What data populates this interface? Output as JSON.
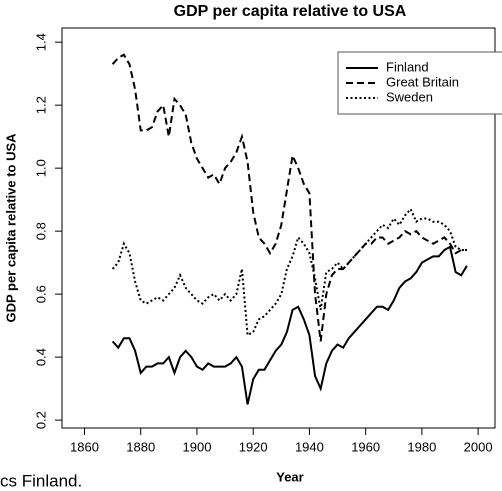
{
  "chart_data": {
    "type": "line",
    "title": "GDP per capita relative to USA",
    "x_label": "Year",
    "y_label": "GDP per capita relative to USA",
    "caption": "cs Finland.",
    "x": [
      1870,
      1872,
      1874,
      1876,
      1878,
      1880,
      1882,
      1884,
      1886,
      1888,
      1890,
      1892,
      1894,
      1896,
      1898,
      1900,
      1902,
      1904,
      1906,
      1908,
      1910,
      1912,
      1914,
      1916,
      1918,
      1920,
      1922,
      1924,
      1926,
      1928,
      1930,
      1932,
      1934,
      1936,
      1938,
      1940,
      1942,
      1944,
      1946,
      1948,
      1950,
      1952,
      1954,
      1956,
      1958,
      1960,
      1962,
      1964,
      1966,
      1968,
      1970,
      1972,
      1974,
      1976,
      1978,
      1980,
      1982,
      1984,
      1986,
      1988,
      1990,
      1992,
      1994,
      1996
    ],
    "series": [
      {
        "name": "Finland",
        "color": "#000000",
        "linestyle": "solid",
        "values": [
          0.45,
          0.43,
          0.46,
          0.46,
          0.42,
          0.35,
          0.37,
          0.37,
          0.38,
          0.38,
          0.4,
          0.35,
          0.4,
          0.42,
          0.4,
          0.37,
          0.36,
          0.38,
          0.37,
          0.37,
          0.37,
          0.38,
          0.4,
          0.37,
          0.25,
          0.33,
          0.36,
          0.36,
          0.39,
          0.42,
          0.44,
          0.48,
          0.55,
          0.56,
          0.52,
          0.47,
          0.34,
          0.3,
          0.38,
          0.42,
          0.44,
          0.43,
          0.46,
          0.48,
          0.5,
          0.52,
          0.54,
          0.56,
          0.56,
          0.55,
          0.58,
          0.62,
          0.64,
          0.65,
          0.67,
          0.7,
          0.71,
          0.72,
          0.72,
          0.74,
          0.75,
          0.67,
          0.66,
          0.69
        ]
      },
      {
        "name": "Great Britain",
        "color": "#000000",
        "linestyle": "dashed",
        "values": [
          1.33,
          1.35,
          1.36,
          1.33,
          1.25,
          1.12,
          1.12,
          1.13,
          1.18,
          1.2,
          1.1,
          1.22,
          1.2,
          1.17,
          1.08,
          1.03,
          1.0,
          0.97,
          0.98,
          0.95,
          1.0,
          1.02,
          1.05,
          1.1,
          1.02,
          0.86,
          0.78,
          0.76,
          0.73,
          0.76,
          0.82,
          0.93,
          1.04,
          1.0,
          0.95,
          0.92,
          0.6,
          0.45,
          0.6,
          0.66,
          0.68,
          0.68,
          0.7,
          0.72,
          0.74,
          0.76,
          0.76,
          0.78,
          0.78,
          0.76,
          0.77,
          0.78,
          0.8,
          0.79,
          0.8,
          0.78,
          0.77,
          0.76,
          0.77,
          0.78,
          0.76,
          0.73,
          0.74,
          0.74
        ]
      },
      {
        "name": "Sweden",
        "color": "#000000",
        "linestyle": "dotted",
        "values": [
          0.68,
          0.7,
          0.76,
          0.73,
          0.64,
          0.58,
          0.57,
          0.58,
          0.59,
          0.58,
          0.6,
          0.62,
          0.66,
          0.62,
          0.6,
          0.58,
          0.57,
          0.59,
          0.6,
          0.58,
          0.6,
          0.58,
          0.6,
          0.68,
          0.47,
          0.48,
          0.52,
          0.53,
          0.55,
          0.57,
          0.6,
          0.68,
          0.72,
          0.78,
          0.76,
          0.73,
          0.65,
          0.55,
          0.67,
          0.68,
          0.7,
          0.68,
          0.7,
          0.72,
          0.74,
          0.76,
          0.78,
          0.8,
          0.82,
          0.81,
          0.84,
          0.82,
          0.85,
          0.87,
          0.83,
          0.84,
          0.84,
          0.83,
          0.83,
          0.82,
          0.8,
          0.75,
          0.74,
          0.74
        ]
      }
    ],
    "xlim": [
      1852,
      2006
    ],
    "xticks": [
      1860,
      1880,
      1900,
      1920,
      1940,
      1960,
      1980,
      2000
    ],
    "ylim": [
      0.175,
      1.445
    ],
    "yticks": [
      0.2,
      0.4,
      0.6,
      0.8,
      {
        "value": 1,
        "label": "1.0"
      },
      1.2,
      1.4
    ],
    "legend": "top-right"
  }
}
